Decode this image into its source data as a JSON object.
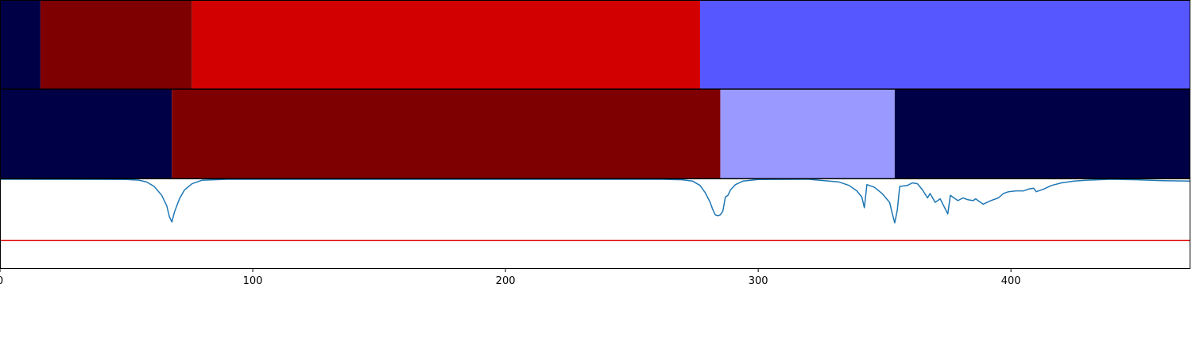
{
  "chart_data": [
    {
      "type": "heatmap",
      "panel": "track-1",
      "xlim": [
        0,
        471
      ],
      "segments": [
        {
          "start": 0,
          "end": 16,
          "color": "#000046"
        },
        {
          "start": 16,
          "end": 76,
          "color": "#7f0000"
        },
        {
          "start": 76,
          "end": 277,
          "color": "#d20000"
        },
        {
          "start": 277,
          "end": 471,
          "color": "#5757ff"
        }
      ]
    },
    {
      "type": "heatmap",
      "panel": "track-2",
      "xlim": [
        0,
        471
      ],
      "segments": [
        {
          "start": 0,
          "end": 68,
          "color": "#000046"
        },
        {
          "start": 68,
          "end": 285,
          "color": "#7f0000"
        },
        {
          "start": 285,
          "end": 354,
          "color": "#9999ff"
        },
        {
          "start": 354,
          "end": 471,
          "color": "#000046"
        }
      ]
    },
    {
      "type": "line",
      "panel": "signal",
      "xlim": [
        0,
        471
      ],
      "ylim": [
        0,
        1
      ],
      "threshold": {
        "y": 0.31,
        "color": "#e00000"
      },
      "series": [
        {
          "color": "#1f77b4",
          "points": [
            [
              0,
              1.0
            ],
            [
              50,
              0.998
            ],
            [
              55,
              0.99
            ],
            [
              58,
              0.97
            ],
            [
              61,
              0.92
            ],
            [
              64,
              0.82
            ],
            [
              66,
              0.7
            ],
            [
              67,
              0.58
            ],
            [
              68,
              0.52
            ],
            [
              69,
              0.63
            ],
            [
              71,
              0.78
            ],
            [
              73,
              0.88
            ],
            [
              76,
              0.95
            ],
            [
              80,
              0.99
            ],
            [
              90,
              1.0
            ],
            [
              262,
              1.0
            ],
            [
              270,
              0.995
            ],
            [
              274,
              0.98
            ],
            [
              277,
              0.93
            ],
            [
              279,
              0.85
            ],
            [
              281,
              0.74
            ],
            [
              282,
              0.66
            ],
            [
              283,
              0.6
            ],
            [
              284,
              0.59
            ],
            [
              285,
              0.6
            ],
            [
              286,
              0.64
            ],
            [
              287,
              0.8
            ],
            [
              288,
              0.82
            ],
            [
              289,
              0.88
            ],
            [
              291,
              0.94
            ],
            [
              294,
              0.98
            ],
            [
              300,
              0.998
            ],
            [
              320,
              1.0
            ],
            [
              328,
              0.98
            ],
            [
              332,
              0.97
            ],
            [
              336,
              0.93
            ],
            [
              339,
              0.87
            ],
            [
              341,
              0.8
            ],
            [
              342,
              0.68
            ],
            [
              343,
              0.94
            ],
            [
              346,
              0.91
            ],
            [
              349,
              0.84
            ],
            [
              352,
              0.74
            ],
            [
              353,
              0.62
            ],
            [
              354,
              0.51
            ],
            [
              355,
              0.65
            ],
            [
              356,
              0.92
            ],
            [
              359,
              0.93
            ],
            [
              361,
              0.96
            ],
            [
              363,
              0.95
            ],
            [
              365,
              0.88
            ],
            [
              367,
              0.79
            ],
            [
              368,
              0.84
            ],
            [
              370,
              0.74
            ],
            [
              372,
              0.78
            ],
            [
              375,
              0.61
            ],
            [
              376,
              0.82
            ],
            [
              379,
              0.76
            ],
            [
              381,
              0.79
            ],
            [
              383,
              0.77
            ],
            [
              385,
              0.76
            ],
            [
              386,
              0.78
            ],
            [
              389,
              0.72
            ],
            [
              392,
              0.76
            ],
            [
              395,
              0.79
            ],
            [
              397,
              0.84
            ],
            [
              399,
              0.86
            ],
            [
              402,
              0.87
            ],
            [
              405,
              0.87
            ],
            [
              407,
              0.89
            ],
            [
              409,
              0.9
            ],
            [
              410,
              0.86
            ],
            [
              413,
              0.89
            ],
            [
              416,
              0.93
            ],
            [
              420,
              0.96
            ],
            [
              425,
              0.98
            ],
            [
              430,
              0.99
            ],
            [
              440,
              1.0
            ],
            [
              450,
              0.995
            ],
            [
              460,
              0.985
            ],
            [
              471,
              0.98
            ]
          ]
        }
      ]
    }
  ],
  "x_axis": {
    "ticks": [
      {
        "value": 0,
        "label": "0"
      },
      {
        "value": 100,
        "label": "100"
      },
      {
        "value": 200,
        "label": "200"
      },
      {
        "value": 300,
        "label": "300"
      },
      {
        "value": 400,
        "label": "400"
      }
    ]
  }
}
